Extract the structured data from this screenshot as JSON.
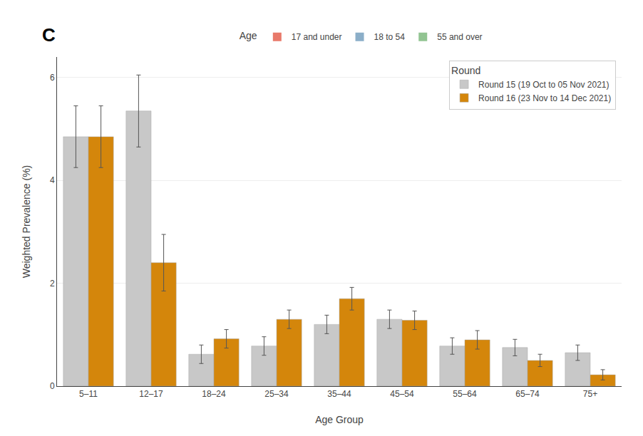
{
  "chart_data": {
    "type": "bar",
    "panel_label": "C",
    "xlabel": "Age Group",
    "ylabel": "Weighted Prevalence (%)",
    "categories": [
      "5–11",
      "12–17",
      "18–24",
      "25–34",
      "35–44",
      "45–54",
      "55–64",
      "65–74",
      "75+"
    ],
    "series": [
      {
        "name": "Round 15 (19 Oct to 05 Nov 2021)",
        "color": "#c8c8c8",
        "values": [
          4.85,
          5.35,
          0.62,
          0.78,
          1.2,
          1.3,
          0.78,
          0.75,
          0.65
        ],
        "error_low": [
          0.6,
          0.7,
          0.18,
          0.18,
          0.18,
          0.18,
          0.16,
          0.16,
          0.15
        ],
        "error_high": [
          0.6,
          0.7,
          0.18,
          0.18,
          0.18,
          0.18,
          0.16,
          0.16,
          0.15
        ]
      },
      {
        "name": "Round 16 (23 Nov to 14 Dec 2021)",
        "color": "#d4860b",
        "values": [
          4.85,
          2.4,
          0.92,
          1.3,
          1.7,
          1.28,
          0.9,
          0.5,
          0.22
        ],
        "error_low": [
          0.6,
          0.55,
          0.18,
          0.18,
          0.22,
          0.18,
          0.18,
          0.12,
          0.1
        ],
        "error_high": [
          0.6,
          0.55,
          0.18,
          0.18,
          0.22,
          0.18,
          0.18,
          0.12,
          0.1
        ]
      }
    ],
    "legend_title": "Round",
    "legend": "upper right",
    "top_legend": {
      "title": "Age",
      "entries": [
        {
          "name": "17 and under",
          "color": "#e8796a"
        },
        {
          "name": "18 to 54",
          "color": "#8baec8"
        },
        {
          "name": "55 and over",
          "color": "#92c492"
        }
      ]
    },
    "ylim": [
      0,
      6.4
    ],
    "yticks": [
      0,
      2,
      4,
      6
    ],
    "grid": true
  }
}
